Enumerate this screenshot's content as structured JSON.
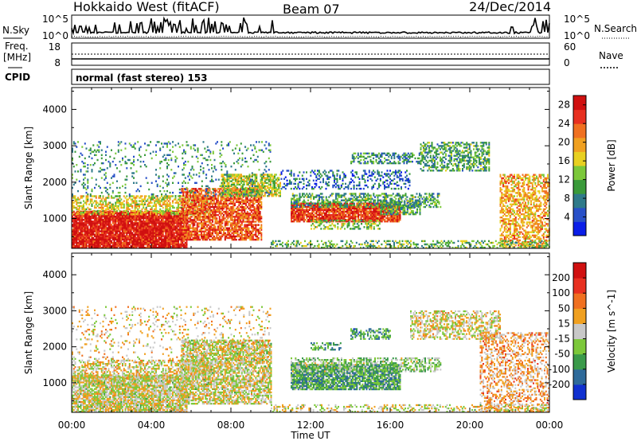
{
  "header": {
    "station": "Hokkaido West (fitACF)",
    "beam": "Beam 07",
    "date": "24/Dec/2014"
  },
  "noise_panel": {
    "left_label": "N.Sky",
    "right_label": "N.Search",
    "left_ticks": [
      "10^5",
      "10^0"
    ],
    "right_ticks": [
      "10^5",
      "10^0"
    ]
  },
  "freq_panel": {
    "left_label_1": "Freq.",
    "left_label_2": "[MHz]",
    "right_label": "Nave",
    "left_ticks": [
      "18",
      "8"
    ],
    "right_ticks": [
      "60",
      "0"
    ]
  },
  "cpid": {
    "label": "CPID",
    "value": "normal (fast stereo) 153"
  },
  "x_axis": {
    "label": "Time UT",
    "ticks": [
      "00:00",
      "04:00",
      "08:00",
      "12:00",
      "16:00",
      "20:00",
      "00:00"
    ]
  },
  "chart_data": [
    {
      "type": "heatmap",
      "name": "power",
      "ylabel": "Slant Range [km]",
      "y_ticks": [
        1000,
        2000,
        3000,
        4000
      ],
      "ylim": [
        180,
        4600
      ],
      "xlim_hours": [
        0,
        24
      ],
      "colorbar": {
        "label": "Power [dB]",
        "ticks": [
          4,
          8,
          12,
          16,
          20,
          24,
          28
        ],
        "range": [
          0,
          30
        ],
        "colors": [
          "#0a1ee8",
          "#2850c8",
          "#2f7a8a",
          "#3a9a3a",
          "#7cc83a",
          "#e8d020",
          "#f0a020",
          "#f07020",
          "#e83020",
          "#d01010"
        ]
      },
      "regions": [
        {
          "t0": 0.0,
          "t1": 5.8,
          "r0": 180,
          "r1": 1200,
          "level": 0.92,
          "density": 0.95
        },
        {
          "t0": 0.0,
          "t1": 7.0,
          "r0": 1100,
          "r1": 1600,
          "level": 0.55,
          "density": 0.55
        },
        {
          "t0": 5.5,
          "t1": 9.5,
          "r0": 400,
          "r1": 1800,
          "level": 0.8,
          "density": 0.75
        },
        {
          "t0": 7.5,
          "t1": 10.5,
          "r0": 1600,
          "r1": 2200,
          "level": 0.5,
          "density": 0.7
        },
        {
          "t0": 0.0,
          "t1": 10.0,
          "r0": 1600,
          "r1": 3100,
          "level": 0.3,
          "density": 0.12
        },
        {
          "t0": 11.0,
          "t1": 16.5,
          "r0": 900,
          "r1": 1400,
          "level": 0.85,
          "density": 0.9
        },
        {
          "t0": 11.0,
          "t1": 18.5,
          "r0": 1300,
          "r1": 1700,
          "level": 0.35,
          "density": 0.5
        },
        {
          "t0": 12.0,
          "t1": 15.5,
          "r0": 700,
          "r1": 950,
          "level": 0.45,
          "density": 0.45
        },
        {
          "t0": 15.5,
          "t1": 17.5,
          "r0": 1100,
          "r1": 1500,
          "level": 0.35,
          "density": 0.6
        },
        {
          "t0": 10.5,
          "t1": 17.0,
          "r0": 1800,
          "r1": 2300,
          "level": 0.2,
          "density": 0.3
        },
        {
          "t0": 14.0,
          "t1": 17.5,
          "r0": 2500,
          "r1": 2800,
          "level": 0.3,
          "density": 0.45
        },
        {
          "t0": 17.5,
          "t1": 21.0,
          "r0": 2300,
          "r1": 3100,
          "level": 0.35,
          "density": 0.5
        },
        {
          "t0": 21.5,
          "t1": 24.0,
          "r0": 200,
          "r1": 2200,
          "level": 0.65,
          "density": 0.55
        },
        {
          "t0": 10.0,
          "t1": 24.0,
          "r0": 180,
          "r1": 400,
          "level": 0.4,
          "density": 0.35
        }
      ]
    },
    {
      "type": "heatmap",
      "name": "velocity",
      "ylabel": "Slant Range [km]",
      "y_ticks": [
        1000,
        2000,
        3000,
        4000
      ],
      "ylim": [
        180,
        4600
      ],
      "xlim_hours": [
        0,
        24
      ],
      "colorbar": {
        "label": "Velocity [m s^-1]",
        "ticks": [
          200,
          100,
          50,
          15,
          -15,
          -50,
          -100,
          -200
        ],
        "range": [
          -250,
          250
        ],
        "colors": [
          "#1030d0",
          "#2e6a9a",
          "#3a9a4a",
          "#7cc83a",
          "#c8c8c8",
          "#f0a020",
          "#f07020",
          "#e83020",
          "#d01010"
        ]
      },
      "regions": [
        {
          "t0": 0.0,
          "t1": 5.8,
          "r0": 180,
          "r1": 1200,
          "level": 0.5,
          "density": 0.85
        },
        {
          "t0": 0.0,
          "t1": 7.0,
          "r0": 1100,
          "r1": 1600,
          "level": 0.52,
          "density": 0.5
        },
        {
          "t0": 5.5,
          "t1": 10.0,
          "r0": 400,
          "r1": 2200,
          "level": 0.5,
          "density": 0.7
        },
        {
          "t0": 0.0,
          "t1": 10.0,
          "r0": 1600,
          "r1": 3100,
          "level": 0.55,
          "density": 0.12
        },
        {
          "t0": 11.0,
          "t1": 16.5,
          "r0": 800,
          "r1": 1500,
          "level": 0.3,
          "density": 0.85
        },
        {
          "t0": 11.0,
          "t1": 18.5,
          "r0": 1300,
          "r1": 1700,
          "level": 0.4,
          "density": 0.5
        },
        {
          "t0": 14.0,
          "t1": 16.0,
          "r0": 2200,
          "r1": 2500,
          "level": 0.28,
          "density": 0.55
        },
        {
          "t0": 12.0,
          "t1": 13.5,
          "r0": 1900,
          "r1": 2100,
          "level": 0.3,
          "density": 0.5
        },
        {
          "t0": 17.0,
          "t1": 21.5,
          "r0": 2200,
          "r1": 3000,
          "level": 0.52,
          "density": 0.5
        },
        {
          "t0": 20.5,
          "t1": 24.0,
          "r0": 200,
          "r1": 2400,
          "level": 0.62,
          "density": 0.4
        },
        {
          "t0": 10.0,
          "t1": 24.0,
          "r0": 180,
          "r1": 400,
          "level": 0.5,
          "density": 0.3
        }
      ]
    }
  ]
}
